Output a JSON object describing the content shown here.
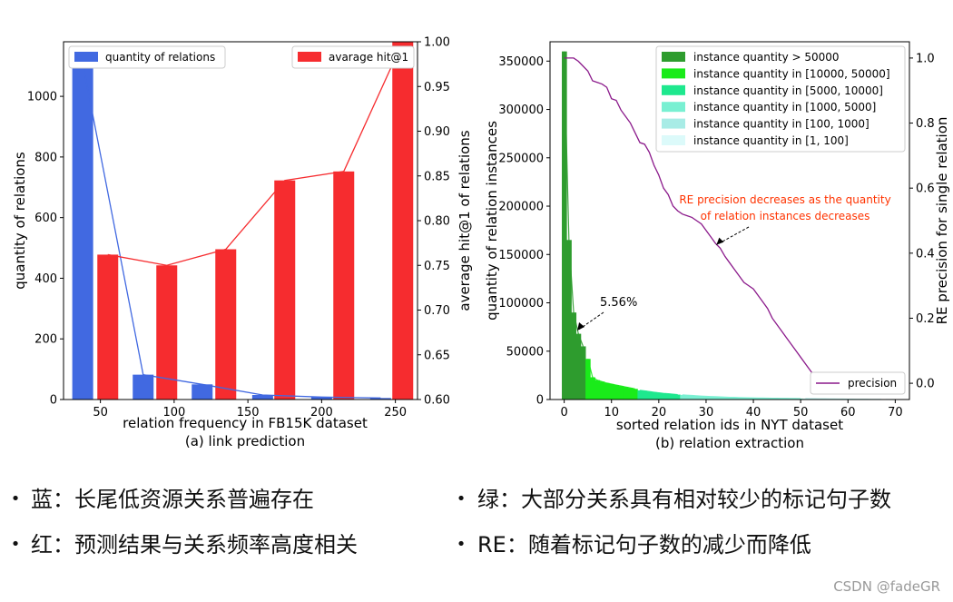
{
  "chart_data": [
    {
      "type": "bar",
      "caption": "(a) link prediction",
      "xlabel": "relation frequency in FB15K dataset",
      "ylabel_left": "quantity of relations",
      "ylabel_right": "average hit@1 of relations",
      "xlim": [
        25,
        265
      ],
      "ylim_left": [
        0,
        1180
      ],
      "ylim_right": [
        0.6,
        1.0
      ],
      "xticks": [
        50,
        100,
        150,
        200,
        250
      ],
      "yticks_left": [
        0,
        200,
        400,
        600,
        800,
        1000
      ],
      "yticks_right": [
        "0.60",
        "0.65",
        "0.70",
        "0.75",
        "0.80",
        "0.85",
        "0.90",
        "0.95",
        "1.00"
      ],
      "legend_placement_left": "top-left",
      "legend_placement_right": "top-right",
      "series": [
        {
          "name": "quantity of relations",
          "color": "#4169e1",
          "axis": "left",
          "x": [
            38,
            79,
            119,
            160,
            200,
            240
          ],
          "values": [
            1110,
            82,
            50,
            15,
            8,
            5
          ]
        },
        {
          "name": "avarage hit@1",
          "color": "#f62c2f",
          "axis": "right",
          "x": [
            55,
            95,
            135,
            175,
            215,
            255
          ],
          "values": [
            0.762,
            0.75,
            0.768,
            0.845,
            0.855,
            1.0
          ]
        }
      ]
    },
    {
      "type": "bar",
      "caption": "(b) relation extraction",
      "xlabel": "sorted relation ids in NYT dataset",
      "ylabel_left": "quantity of relation instances",
      "ylabel_right": "RE precision for single relation",
      "xlim": [
        -3,
        73
      ],
      "ylim_left": [
        0,
        370000
      ],
      "ylim_right": [
        -0.05,
        1.05
      ],
      "xticks": [
        0,
        10,
        20,
        30,
        40,
        50,
        60,
        70
      ],
      "yticks_left": [
        0,
        50000,
        100000,
        150000,
        200000,
        250000,
        300000,
        350000
      ],
      "yticks_right": [
        "0.0",
        "0.2",
        "0.4",
        "0.6",
        "0.8",
        "1.0"
      ],
      "legend_placement": "top-right",
      "series": [
        {
          "name": "instance quantity > 50000",
          "color": "#2e9c2e",
          "x": [
            0,
            1,
            2,
            3,
            4
          ],
          "values": [
            360000,
            165000,
            90000,
            68000,
            55000
          ]
        },
        {
          "name": "instance quantity in [10000, 50000]",
          "color": "#1aeb1a",
          "x": [
            5,
            6,
            7,
            8,
            9,
            10,
            11,
            12,
            13,
            14,
            15
          ],
          "values": [
            42000,
            23000,
            20000,
            18500,
            17000,
            16000,
            15000,
            14000,
            13000,
            12000,
            11000
          ]
        },
        {
          "name": "instance quantity in [5000, 10000]",
          "color": "#1ee88e",
          "x": [
            16,
            17,
            18,
            19,
            20,
            21,
            22,
            23,
            24
          ],
          "values": [
            9500,
            9000,
            8300,
            7600,
            7000,
            6400,
            6000,
            5500,
            5100
          ]
        },
        {
          "name": "instance quantity in [1000, 5000]",
          "color": "#79f0d2",
          "x": [
            25,
            26,
            27,
            28,
            29,
            30,
            31,
            32,
            33,
            34,
            35,
            36,
            37,
            38,
            39,
            40,
            41,
            42,
            43,
            44,
            45,
            46,
            47,
            48,
            49,
            50
          ],
          "values": [
            4800,
            4500,
            4200,
            3900,
            3600,
            3300,
            3100,
            2900,
            2700,
            2500,
            2300,
            2200,
            2000,
            1900,
            1800,
            1700,
            1600,
            1500,
            1400,
            1350,
            1300,
            1250,
            1200,
            1100,
            1050,
            1000
          ]
        },
        {
          "name": "instance quantity in [100, 1000]",
          "color": "#a8ece6",
          "x": [
            51,
            52,
            53,
            54,
            55,
            56,
            57,
            58,
            59,
            60,
            61,
            62,
            63,
            64,
            65,
            66,
            67
          ],
          "values": [
            950,
            900,
            850,
            780,
            700,
            630,
            560,
            500,
            440,
            380,
            330,
            280,
            240,
            200,
            170,
            140,
            110
          ]
        },
        {
          "name": "instance quantity in [1, 100]",
          "color": "#dcfafa",
          "x": [
            68,
            69,
            70
          ],
          "values": [
            90,
            60,
            30
          ]
        },
        {
          "name": "precision",
          "color": "#8b1a8b",
          "type": "line",
          "x": [
            0,
            1,
            2,
            3,
            4,
            5,
            6,
            7,
            8,
            9,
            10,
            11,
            12,
            13,
            14,
            15,
            16,
            17,
            18,
            19,
            20,
            21,
            22,
            23,
            24,
            25,
            26,
            27,
            28,
            29,
            30,
            31,
            32,
            33,
            34,
            35,
            36,
            37,
            38,
            39,
            40,
            41,
            42,
            43,
            44,
            45,
            46,
            47,
            48,
            49,
            50,
            51,
            52,
            53,
            54,
            55,
            56,
            57,
            58,
            59,
            60,
            61,
            62,
            63,
            64,
            65,
            66
          ],
          "values": [
            1.0,
            1.0,
            1.0,
            0.99,
            0.975,
            0.96,
            0.93,
            0.925,
            0.92,
            0.91,
            0.875,
            0.87,
            0.84,
            0.82,
            0.8,
            0.77,
            0.74,
            0.735,
            0.71,
            0.67,
            0.64,
            0.6,
            0.58,
            0.545,
            0.53,
            0.52,
            0.515,
            0.51,
            0.5,
            0.49,
            0.47,
            0.45,
            0.43,
            0.415,
            0.39,
            0.37,
            0.35,
            0.33,
            0.31,
            0.3,
            0.29,
            0.27,
            0.25,
            0.23,
            0.2,
            0.18,
            0.16,
            0.14,
            0.12,
            0.1,
            0.08,
            0.06,
            0.04,
            0.02,
            0.01,
            0.0,
            0.0,
            0.0,
            0.0,
            0.0,
            0.0,
            0.0,
            0.0,
            0.0,
            0.0,
            0.0,
            0.0
          ]
        }
      ],
      "annotations": [
        {
          "text": "5.56%",
          "arrow_to": {
            "x": 2,
            "y": 15000
          }
        },
        {
          "lines": [
            "RE precision  decreases as the  quantity",
            "of relation instances decreases"
          ],
          "color": "#ff3300",
          "arrow_to": {
            "x": 32,
            "y": 0.42
          }
        }
      ]
    }
  ],
  "bullets_left": [
    "蓝：长尾低资源关系普遍存在",
    "红：预测结果与关系频率高度相关"
  ],
  "bullets_right": [
    "绿：大部分关系具有相对较少的标记句子数",
    "RE：随着标记句子数的减少而降低"
  ],
  "bullet_symbol": "•",
  "watermark": "CSDN @fadeGR"
}
